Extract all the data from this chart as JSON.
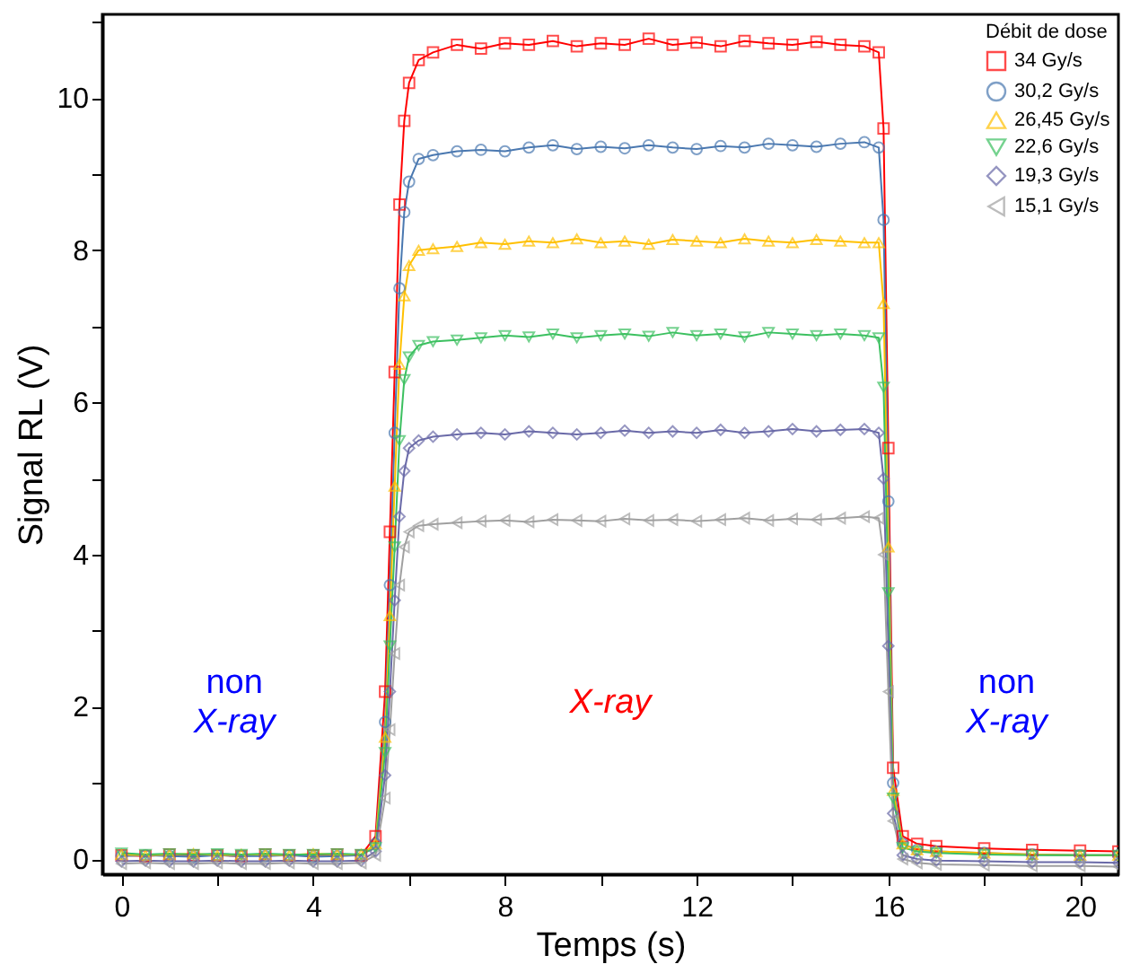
{
  "chart_data": {
    "type": "line",
    "xlabel": "Temps (s)",
    "ylabel": "Signal RL (V)",
    "legend_title": "Débit de dose",
    "legend": "top right",
    "grid": false,
    "xlim": [
      -0.4,
      20.8
    ],
    "ylim": [
      -0.2,
      11.1
    ],
    "xticks": [
      0,
      {
        "value": 2,
        "label": null
      },
      4,
      {
        "value": 6,
        "label": null
      },
      8,
      {
        "value": 10,
        "label": null
      },
      12,
      {
        "value": 14,
        "label": null
      },
      16,
      {
        "value": 18,
        "label": null
      },
      20
    ],
    "yticks": [
      0,
      {
        "value": 1,
        "label": null
      },
      2,
      {
        "value": 3,
        "label": null
      },
      4,
      {
        "value": 5,
        "label": null
      },
      6,
      {
        "value": 7,
        "label": null
      },
      8,
      {
        "value": 9,
        "label": null
      },
      10,
      {
        "value": 11,
        "label": null
      }
    ],
    "annotations": [
      "non X-ray",
      "X-ray",
      "non X-ray"
    ],
    "x": [
      0,
      0.5,
      1,
      1.5,
      2,
      2.5,
      3,
      3.5,
      4,
      4.5,
      5,
      5.3,
      5.5,
      5.6,
      5.7,
      5.8,
      5.9,
      6,
      6.2,
      6.5,
      7,
      7.5,
      8,
      8.5,
      9,
      9.5,
      10,
      10.5,
      11,
      11.5,
      12,
      12.5,
      13,
      13.5,
      14,
      14.5,
      15,
      15.5,
      15.8,
      15.9,
      16,
      16.1,
      16.3,
      16.6,
      17,
      18,
      19,
      20,
      20.8
    ],
    "series": [
      {
        "name": "34 Gy/s",
        "color": "#ff0000",
        "marker": "square",
        "values": [
          0.05,
          0.04,
          0.06,
          0.05,
          0.05,
          0.04,
          0.06,
          0.05,
          0.05,
          0.06,
          0.05,
          0.3,
          2.2,
          4.3,
          6.4,
          8.6,
          9.7,
          10.2,
          10.5,
          10.6,
          10.7,
          10.65,
          10.72,
          10.7,
          10.75,
          10.68,
          10.72,
          10.7,
          10.78,
          10.7,
          10.73,
          10.68,
          10.75,
          10.72,
          10.7,
          10.74,
          10.7,
          10.68,
          10.6,
          9.6,
          5.4,
          1.2,
          0.3,
          0.2,
          0.17,
          0.14,
          0.12,
          0.11,
          0.1
        ]
      },
      {
        "name": "30,2 Gy/s",
        "color": "#4a78b0",
        "marker": "circle",
        "values": [
          0.04,
          0.05,
          0.04,
          0.03,
          0.05,
          0.04,
          0.04,
          0.05,
          0.03,
          0.04,
          0.05,
          0.2,
          1.8,
          3.6,
          5.6,
          7.5,
          8.5,
          8.9,
          9.2,
          9.25,
          9.3,
          9.32,
          9.3,
          9.35,
          9.38,
          9.33,
          9.36,
          9.34,
          9.38,
          9.35,
          9.33,
          9.37,
          9.35,
          9.4,
          9.38,
          9.36,
          9.4,
          9.42,
          9.35,
          8.4,
          4.7,
          1.0,
          0.2,
          0.12,
          0.1,
          0.08,
          0.06,
          0.05,
          0.05
        ]
      },
      {
        "name": "26,45 Gy/s",
        "color": "#ffc000",
        "marker": "triangle-up",
        "values": [
          0.06,
          0.05,
          0.06,
          0.07,
          0.05,
          0.06,
          0.06,
          0.05,
          0.07,
          0.06,
          0.06,
          0.2,
          1.6,
          3.2,
          4.9,
          6.5,
          7.4,
          7.8,
          8.0,
          8.02,
          8.05,
          8.1,
          8.08,
          8.12,
          8.1,
          8.15,
          8.1,
          8.12,
          8.08,
          8.14,
          8.12,
          8.1,
          8.15,
          8.12,
          8.1,
          8.14,
          8.12,
          8.1,
          8.1,
          7.3,
          4.1,
          0.9,
          0.2,
          0.12,
          0.1,
          0.08,
          0.06,
          0.05,
          0.05
        ]
      },
      {
        "name": "22,6 Gy/s",
        "color": "#3cc060",
        "marker": "triangle-down",
        "values": [
          0.08,
          0.06,
          0.07,
          0.06,
          0.07,
          0.06,
          0.07,
          0.06,
          0.06,
          0.07,
          0.06,
          0.15,
          1.4,
          2.8,
          4.1,
          5.5,
          6.3,
          6.6,
          6.75,
          6.8,
          6.82,
          6.85,
          6.88,
          6.86,
          6.9,
          6.85,
          6.88,
          6.9,
          6.87,
          6.92,
          6.88,
          6.9,
          6.86,
          6.92,
          6.9,
          6.88,
          6.9,
          6.88,
          6.85,
          6.2,
          3.5,
          0.8,
          0.15,
          0.1,
          0.08,
          0.06,
          0.05,
          0.05,
          0.05
        ]
      },
      {
        "name": "19,3 Gy/s",
        "color": "#6a6aa8",
        "marker": "diamond",
        "values": [
          -0.03,
          -0.02,
          -0.03,
          -0.03,
          -0.02,
          -0.03,
          -0.03,
          -0.02,
          -0.03,
          -0.03,
          -0.02,
          0.1,
          1.1,
          2.2,
          3.4,
          4.5,
          5.1,
          5.4,
          5.5,
          5.55,
          5.58,
          5.6,
          5.58,
          5.62,
          5.6,
          5.58,
          5.6,
          5.63,
          5.6,
          5.62,
          5.6,
          5.64,
          5.6,
          5.62,
          5.65,
          5.62,
          5.64,
          5.65,
          5.6,
          5.0,
          2.8,
          0.6,
          0.05,
          0.0,
          -0.02,
          -0.03,
          -0.04,
          -0.04,
          -0.05
        ]
      },
      {
        "name": "15,1 Gy/s",
        "color": "#a0a0a0",
        "marker": "triangle-left",
        "values": [
          -0.06,
          -0.05,
          -0.06,
          -0.06,
          -0.05,
          -0.06,
          -0.06,
          -0.05,
          -0.06,
          -0.06,
          -0.05,
          0.05,
          0.8,
          1.7,
          2.7,
          3.6,
          4.1,
          4.3,
          4.38,
          4.4,
          4.42,
          4.44,
          4.45,
          4.43,
          4.46,
          4.45,
          4.44,
          4.47,
          4.45,
          4.46,
          4.44,
          4.46,
          4.48,
          4.45,
          4.47,
          4.46,
          4.48,
          4.5,
          4.48,
          4.0,
          2.2,
          0.5,
          0.0,
          -0.05,
          -0.07,
          -0.08,
          -0.09,
          -0.09,
          -0.1
        ]
      }
    ]
  }
}
